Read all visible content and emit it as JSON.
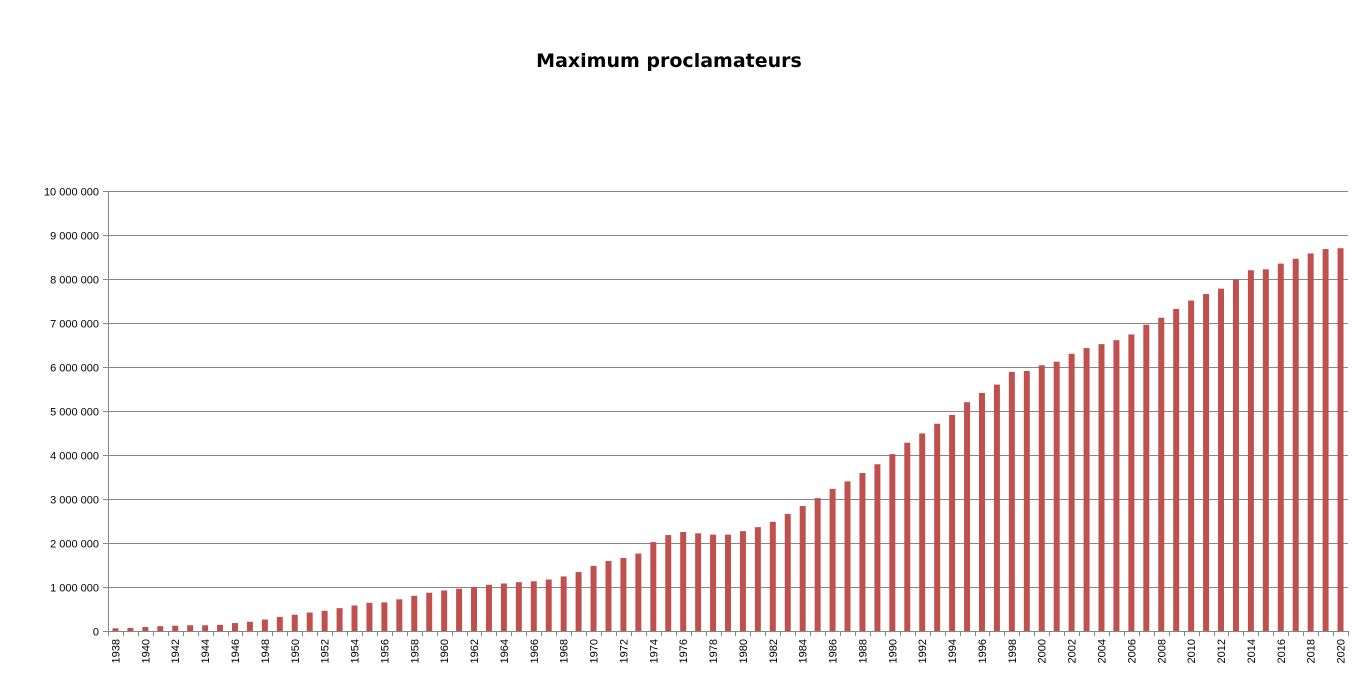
{
  "chart_data": {
    "type": "bar",
    "title": "Maximum proclamateurs",
    "xlabel": "",
    "ylabel": "",
    "ylim": [
      0,
      10000000
    ],
    "yticks": [
      0,
      1000000,
      2000000,
      3000000,
      4000000,
      5000000,
      6000000,
      7000000,
      8000000,
      9000000,
      10000000
    ],
    "ytick_labels": [
      "0",
      "1 000 000",
      "2 000 000",
      "3 000 000",
      "4 000 000",
      "5 000 000",
      "6 000 000",
      "7 000 000",
      "8 000 000",
      "9 000 000",
      "10 000 000"
    ],
    "grid": true,
    "legend": "none",
    "bar_color": "#C0504D",
    "categories": [
      "1938",
      "1939",
      "1940",
      "1941",
      "1942",
      "1943",
      "1944",
      "1945",
      "1946",
      "1947",
      "1948",
      "1949",
      "1950",
      "1951",
      "1952",
      "1953",
      "1954",
      "1955",
      "1956",
      "1957",
      "1958",
      "1959",
      "1960",
      "1961",
      "1962",
      "1963",
      "1964",
      "1965",
      "1966",
      "1967",
      "1968",
      "1969",
      "1970",
      "1971",
      "1972",
      "1973",
      "1974",
      "1975",
      "1976",
      "1977",
      "1978",
      "1979",
      "1980",
      "1981",
      "1982",
      "1983",
      "1984",
      "1985",
      "1986",
      "1987",
      "1988",
      "1989",
      "1990",
      "1991",
      "1992",
      "1993",
      "1994",
      "1995",
      "1996",
      "1997",
      "1998",
      "1999",
      "2000",
      "2001",
      "2002",
      "2003",
      "2004",
      "2005",
      "2006",
      "2007",
      "2008",
      "2009",
      "2010",
      "2011",
      "2012",
      "2013",
      "2014",
      "2015",
      "2016",
      "2017",
      "2018",
      "2019",
      "2020"
    ],
    "x_tick_labels": [
      "1938",
      "1940",
      "1942",
      "1944",
      "1946",
      "1948",
      "1950",
      "1952",
      "1954",
      "1956",
      "1958",
      "1960",
      "1962",
      "1964",
      "1966",
      "1968",
      "1970",
      "1972",
      "1974",
      "1976",
      "1978",
      "1980",
      "1982",
      "1984",
      "1986",
      "1988",
      "1990",
      "1992",
      "1994",
      "1996",
      "1998",
      "2000",
      "2002",
      "2004",
      "2006",
      "2008",
      "2010",
      "2012",
      "2014",
      "2016",
      "2018",
      "2020"
    ],
    "values": [
      60000,
      70000,
      90000,
      110000,
      120000,
      130000,
      130000,
      140000,
      180000,
      210000,
      260000,
      320000,
      370000,
      420000,
      460000,
      520000,
      580000,
      640000,
      650000,
      720000,
      800000,
      870000,
      920000,
      960000,
      1000000,
      1050000,
      1080000,
      1110000,
      1130000,
      1170000,
      1240000,
      1340000,
      1480000,
      1590000,
      1660000,
      1760000,
      2020000,
      2180000,
      2250000,
      2220000,
      2190000,
      2190000,
      2270000,
      2360000,
      2480000,
      2660000,
      2840000,
      3020000,
      3230000,
      3400000,
      3590000,
      3790000,
      4020000,
      4280000,
      4490000,
      4710000,
      4910000,
      5200000,
      5410000,
      5600000,
      5890000,
      5910000,
      6040000,
      6120000,
      6300000,
      6430000,
      6520000,
      6610000,
      6740000,
      6960000,
      7120000,
      7320000,
      7510000,
      7660000,
      7780000,
      7990000,
      8200000,
      8220000,
      8350000,
      8460000,
      8580000,
      8680000,
      8700000
    ]
  }
}
